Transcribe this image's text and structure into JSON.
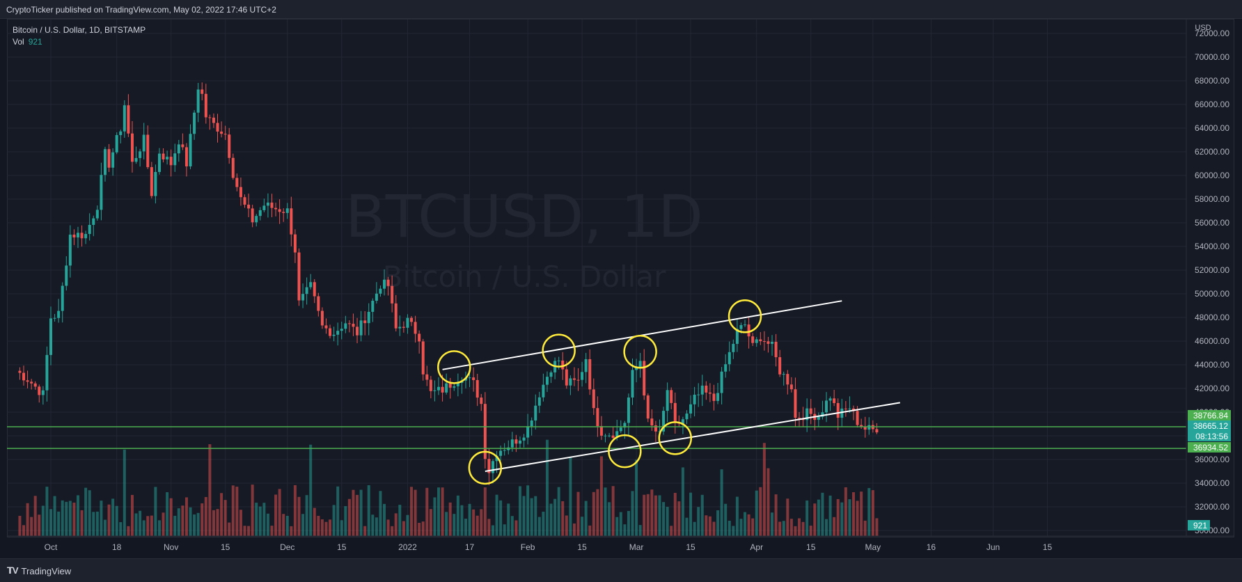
{
  "header": {
    "published_text": "CryptoTicker published on TradingView.com, May 02, 2022 17:46 UTC+2"
  },
  "legend": {
    "symbol_line": "Bitcoin / U.S. Dollar, 1D, BITSTAMP",
    "vol_label": "Vol",
    "vol_value": "921"
  },
  "watermark": {
    "line1": "BTCUSD, 1D",
    "line2": "Bitcoin / U.S. Dollar"
  },
  "footer": {
    "brand": "TradingView"
  },
  "colors": {
    "up": "#26a69a",
    "down": "#ef5350",
    "background": "#161a25",
    "grid": "#232734",
    "trendline": "#ffffff",
    "circle": "#ffeb3b",
    "hline": "#4caf50"
  },
  "chart_data": {
    "type": "candlestick",
    "symbol": "BTCUSD",
    "interval": "1D",
    "exchange": "BITSTAMP",
    "currency_label": "USD",
    "ylim": [
      30000,
      72000
    ],
    "y_ticks": [
      "30000.00",
      "32000.00",
      "34000.00",
      "36000.00",
      "38000.00",
      "40000.00",
      "42000.00",
      "44000.00",
      "46000.00",
      "48000.00",
      "50000.00",
      "52000.00",
      "54000.00",
      "56000.00",
      "58000.00",
      "60000.00",
      "62000.00",
      "64000.00",
      "66000.00",
      "68000.00",
      "70000.00",
      "72000.00"
    ],
    "x_axis_labels": [
      {
        "label": "Oct",
        "date": "2021-10-01"
      },
      {
        "label": "18",
        "date": "2021-10-18"
      },
      {
        "label": "Nov",
        "date": "2021-11-01"
      },
      {
        "label": "15",
        "date": "2021-11-15"
      },
      {
        "label": "Dec",
        "date": "2021-12-01"
      },
      {
        "label": "15",
        "date": "2021-12-15"
      },
      {
        "label": "2022",
        "date": "2022-01-01"
      },
      {
        "label": "17",
        "date": "2022-01-17"
      },
      {
        "label": "Feb",
        "date": "2022-02-01"
      },
      {
        "label": "15",
        "date": "2022-02-15"
      },
      {
        "label": "Mar",
        "date": "2022-03-01"
      },
      {
        "label": "15",
        "date": "2022-03-15"
      },
      {
        "label": "Apr",
        "date": "2022-04-01"
      },
      {
        "label": "15",
        "date": "2022-04-15"
      },
      {
        "label": "May",
        "date": "2022-05-01"
      },
      {
        "label": "16",
        "date": "2022-05-16"
      },
      {
        "label": "Jun",
        "date": "2022-06-01"
      },
      {
        "label": "15",
        "date": "2022-06-15"
      }
    ],
    "close_path": [
      [
        "2021-09-22",
        43500
      ],
      [
        "2021-09-25",
        42800
      ],
      [
        "2021-09-29",
        41500
      ],
      [
        "2021-10-01",
        48000
      ],
      [
        "2021-10-03",
        48300
      ],
      [
        "2021-10-06",
        55000
      ],
      [
        "2021-10-10",
        55000
      ],
      [
        "2021-10-13",
        57500
      ],
      [
        "2021-10-15",
        61800
      ],
      [
        "2021-10-16",
        61000
      ],
      [
        "2021-10-19",
        64000
      ],
      [
        "2021-10-20",
        66000
      ],
      [
        "2021-10-22",
        61000
      ],
      [
        "2021-10-25",
        63000
      ],
      [
        "2021-10-27",
        58500
      ],
      [
        "2021-10-29",
        62000
      ],
      [
        "2021-11-01",
        61000
      ],
      [
        "2021-11-03",
        63000
      ],
      [
        "2021-11-05",
        61000
      ],
      [
        "2021-11-08",
        67500
      ],
      [
        "2021-11-09",
        66800
      ],
      [
        "2021-11-10",
        65000
      ],
      [
        "2021-11-12",
        64300
      ],
      [
        "2021-11-15",
        63500
      ],
      [
        "2021-11-17",
        60200
      ],
      [
        "2021-11-19",
        58000
      ],
      [
        "2021-11-22",
        56200
      ],
      [
        "2021-11-25",
        57500
      ],
      [
        "2021-11-28",
        57200
      ],
      [
        "2021-12-01",
        57000
      ],
      [
        "2021-12-03",
        53700
      ],
      [
        "2021-12-04",
        49200
      ],
      [
        "2021-12-07",
        50600
      ],
      [
        "2021-12-10",
        47200
      ],
      [
        "2021-12-13",
        46700
      ],
      [
        "2021-12-16",
        47600
      ],
      [
        "2021-12-19",
        46700
      ],
      [
        "2021-12-22",
        48600
      ],
      [
        "2021-12-25",
        50800
      ],
      [
        "2021-12-27",
        50700
      ],
      [
        "2021-12-29",
        47000
      ],
      [
        "2022-01-01",
        47700
      ],
      [
        "2022-01-04",
        46400
      ],
      [
        "2022-01-05",
        43500
      ],
      [
        "2022-01-07",
        41600
      ],
      [
        "2022-01-10",
        41900
      ],
      [
        "2022-01-13",
        42600
      ],
      [
        "2022-01-15",
        43100
      ],
      [
        "2022-01-18",
        42400
      ],
      [
        "2022-01-20",
        40700
      ],
      [
        "2022-01-21",
        36450
      ],
      [
        "2022-01-22",
        35050
      ],
      [
        "2022-01-24",
        36700
      ],
      [
        "2022-01-27",
        37200
      ],
      [
        "2022-01-30",
        37900
      ],
      [
        "2022-02-01",
        38700
      ],
      [
        "2022-02-04",
        41600
      ],
      [
        "2022-02-07",
        43800
      ],
      [
        "2022-02-09",
        44400
      ],
      [
        "2022-02-11",
        42400
      ],
      [
        "2022-02-14",
        42600
      ],
      [
        "2022-02-16",
        44600
      ],
      [
        "2022-02-18",
        40000
      ],
      [
        "2022-02-20",
        38400
      ],
      [
        "2022-02-22",
        38200
      ],
      [
        "2022-02-24",
        38300
      ],
      [
        "2022-02-26",
        39200
      ],
      [
        "2022-02-28",
        43200
      ],
      [
        "2022-03-02",
        44400
      ],
      [
        "2022-03-04",
        39100
      ],
      [
        "2022-03-07",
        38000
      ],
      [
        "2022-03-09",
        41900
      ],
      [
        "2022-03-11",
        38800
      ],
      [
        "2022-03-14",
        39700
      ],
      [
        "2022-03-16",
        41100
      ],
      [
        "2022-03-18",
        41800
      ],
      [
        "2022-03-21",
        41000
      ],
      [
        "2022-03-24",
        44000
      ],
      [
        "2022-03-27",
        46800
      ],
      [
        "2022-03-29",
        47400
      ],
      [
        "2022-03-31",
        45500
      ],
      [
        "2022-04-02",
        46400
      ],
      [
        "2022-04-05",
        45500
      ],
      [
        "2022-04-07",
        43500
      ],
      [
        "2022-04-10",
        42200
      ],
      [
        "2022-04-11",
        39500
      ],
      [
        "2022-04-14",
        39900
      ],
      [
        "2022-04-17",
        39700
      ],
      [
        "2022-04-20",
        41400
      ],
      [
        "2022-04-22",
        39700
      ],
      [
        "2022-04-25",
        40400
      ],
      [
        "2022-04-27",
        39200
      ],
      [
        "2022-04-29",
        38600
      ],
      [
        "2022-05-01",
        38500
      ],
      [
        "2022-05-02",
        38665
      ]
    ],
    "price_markers": [
      {
        "label": "38766.84",
        "color": "#4caf50",
        "price": 38766.84
      },
      {
        "label": "38665.12",
        "color": "#26a69a",
        "price": 38665.12
      },
      {
        "label": "08:13:56",
        "color": "#26a69a",
        "price": null
      },
      {
        "label": "36934.52",
        "color": "#4caf50",
        "price": 36934.52
      }
    ],
    "horizontal_lines": [
      38766.84,
      36934.52
    ],
    "trendlines": [
      {
        "from": [
          "2022-01-10",
          43600
        ],
        "to": [
          "2022-04-23",
          49400
        ]
      },
      {
        "from": [
          "2022-01-21",
          35000
        ],
        "to": [
          "2022-05-08",
          40800
        ]
      }
    ],
    "circled_pivots": [
      {
        "date": "2022-01-13",
        "price": 43800
      },
      {
        "date": "2022-02-09",
        "price": 45200
      },
      {
        "date": "2022-03-02",
        "price": 45100
      },
      {
        "date": "2022-03-29",
        "price": 48100
      },
      {
        "date": "2022-01-21",
        "price": 35300
      },
      {
        "date": "2022-02-26",
        "price": 36700
      },
      {
        "date": "2022-03-11",
        "price": 37800
      }
    ],
    "volume_label": "921"
  }
}
